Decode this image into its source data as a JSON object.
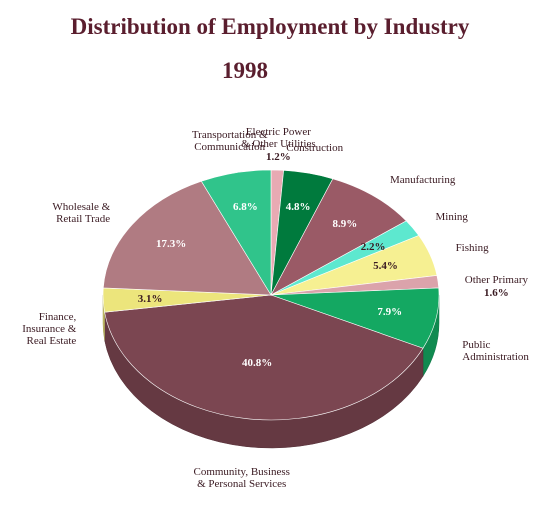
{
  "chart_data": {
    "type": "pie",
    "title": "Distribution of Employment by Industry",
    "subtitle": "1998",
    "categories": [
      "Electric Power\n& Other Utilities",
      "Construction",
      "Manufacturing",
      "Mining",
      "Fishing",
      "Other Primary",
      "Public\nAdministration",
      "Community, Business\n& Personal Services",
      "Finance,\nInsurance &\nReal Estate",
      "Wholesale &\nRetail Trade",
      "Transportation &\nCommunication"
    ],
    "values": [
      1.2,
      4.8,
      8.9,
      2.2,
      5.4,
      1.6,
      7.9,
      40.8,
      3.1,
      17.3,
      6.8
    ],
    "value_labels": [
      "1.2%",
      "4.8%",
      "8.9%",
      "2.2%",
      "5.4%",
      "1.6%",
      "7.9%",
      "40.8%",
      "3.1%",
      "17.3%",
      "6.8%"
    ],
    "colors": [
      "#e8aab3",
      "#007a3d",
      "#9a5a66",
      "#5de8cf",
      "#f6f092",
      "#dba3ab",
      "#14a862",
      "#7b4651",
      "#ece57c",
      "#b07b82",
      "#30c48b"
    ]
  }
}
